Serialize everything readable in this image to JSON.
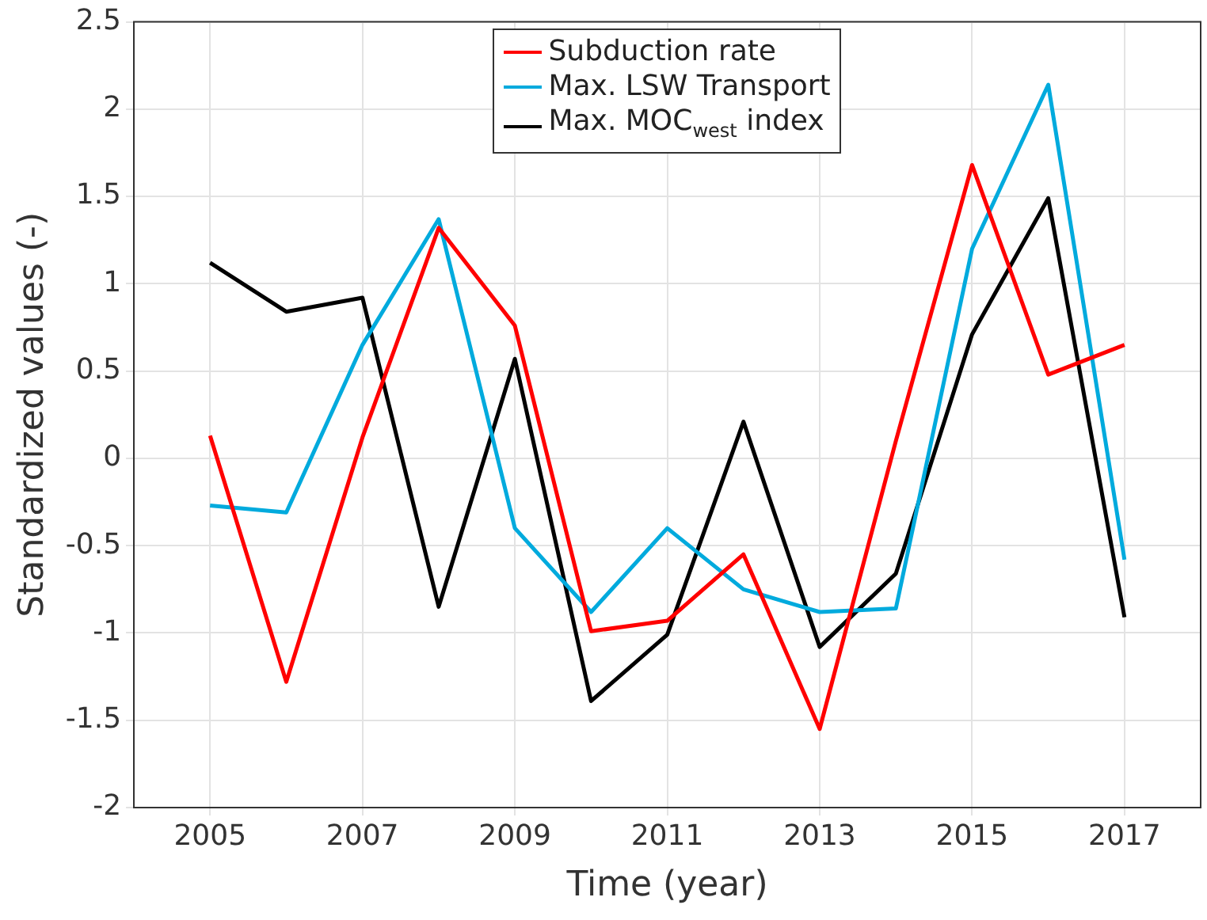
{
  "chart_data": {
    "type": "line",
    "xlabel": "Time (year)",
    "ylabel": "Standardized values (-)",
    "x": [
      2005,
      2006,
      2007,
      2008,
      2009,
      2010,
      2011,
      2012,
      2013,
      2014,
      2015,
      2016,
      2017
    ],
    "series": [
      {
        "name": "Subduction rate",
        "color": "#ff0000",
        "values": [
          0.13,
          -1.28,
          0.12,
          1.32,
          0.76,
          -0.99,
          -0.93,
          -0.55,
          -1.55,
          0.1,
          1.68,
          0.48,
          0.65
        ]
      },
      {
        "name": "Max. LSW Transport",
        "color": "#00aadd",
        "values": [
          -0.27,
          -0.31,
          0.65,
          1.37,
          -0.4,
          -0.88,
          -0.4,
          -0.75,
          -0.88,
          -0.86,
          1.2,
          2.14,
          -0.58
        ]
      },
      {
        "name": "Max. MOC$_{west}$ index",
        "color": "#000000",
        "values": [
          1.12,
          0.84,
          0.92,
          -0.85,
          0.57,
          -1.39,
          -1.01,
          0.21,
          -1.08,
          -0.66,
          0.71,
          1.49,
          -0.91
        ]
      }
    ],
    "xlim": [
      2004,
      2018
    ],
    "xticks": [
      2005,
      2007,
      2009,
      2011,
      2013,
      2015,
      2017
    ],
    "ylim": [
      -2,
      2.5
    ],
    "yticks": [
      -2,
      -1.5,
      -1,
      -0.5,
      0,
      0.5,
      1,
      1.5,
      2,
      2.5
    ],
    "grid": true,
    "legend": "top",
    "marker": "none",
    "line_style": "solid"
  }
}
